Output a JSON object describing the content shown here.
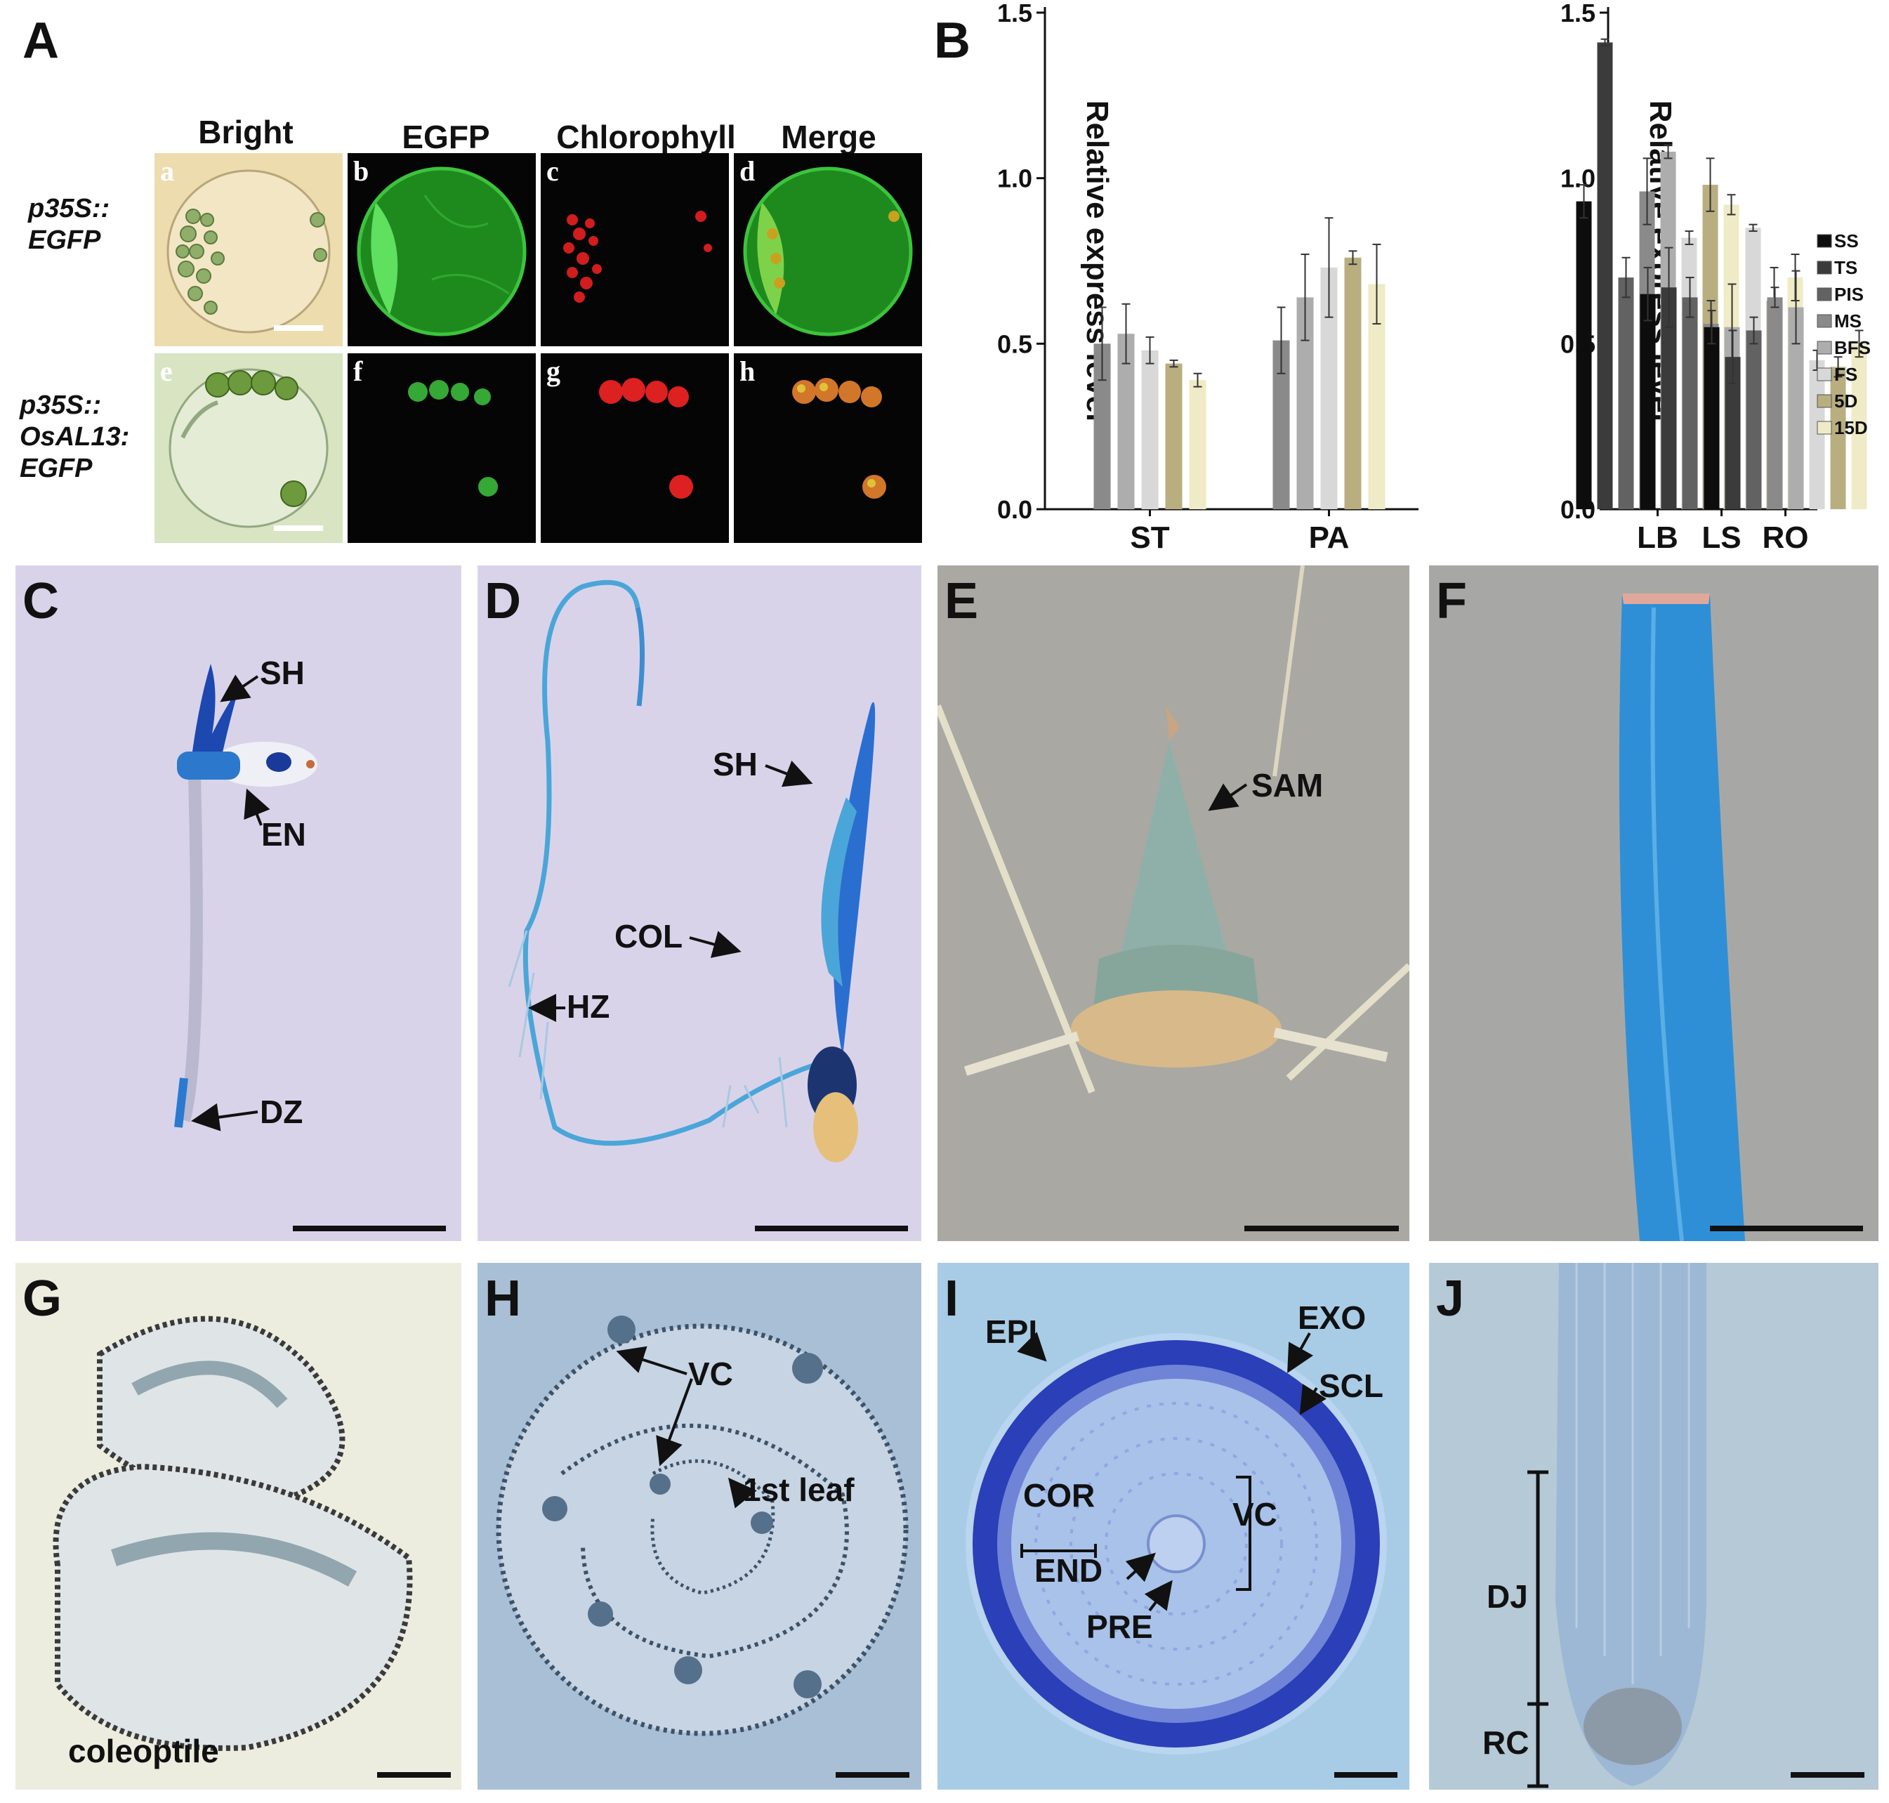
{
  "panelA": {
    "label": "A",
    "columns": [
      "Bright",
      "EGFP",
      "Chlorophyll",
      "Merge"
    ],
    "rows": [
      {
        "label_lines": [
          "p35S::",
          "EGFP"
        ],
        "cells": [
          "a",
          "b",
          "c",
          "d"
        ]
      },
      {
        "label_lines": [
          "p35S::",
          "OsAL13:",
          "EGFP"
        ],
        "cells": [
          "e",
          "f",
          "g",
          "h"
        ]
      }
    ]
  },
  "panelB": {
    "label": "B",
    "legend": [
      "SS",
      "TS",
      "PIS",
      "MS",
      "BFS",
      "FS",
      "5D",
      "15D"
    ]
  },
  "chart_data": [
    {
      "type": "bar",
      "ylabel": "Relative express level",
      "ylim": [
        0,
        1.5
      ],
      "yticks": [
        "0.0",
        "0.5",
        "1.0",
        "1.5"
      ],
      "groups": [
        {
          "name": "ST",
          "values": {
            "MS": 0.5,
            "BFS": 0.53,
            "FS": 0.48,
            "5D": 0.44,
            "15D": 0.39
          },
          "errors": {
            "MS": 0.11,
            "BFS": 0.09,
            "FS": 0.04,
            "5D": 0.01,
            "15D": 0.02
          }
        },
        {
          "name": "PA",
          "values": {
            "MS": 0.51,
            "BFS": 0.64,
            "FS": 0.73,
            "5D": 0.76,
            "15D": 0.68
          },
          "errors": {
            "MS": 0.1,
            "BFS": 0.13,
            "FS": 0.15,
            "5D": 0.02,
            "15D": 0.12
          }
        }
      ]
    },
    {
      "type": "bar",
      "ylabel": "Relative express level",
      "ylim": [
        0,
        1.5
      ],
      "yticks": [
        "0.0",
        "0.5",
        "1.0",
        "1.5"
      ],
      "groups": [
        {
          "name": "LB",
          "values": {
            "SS": 0.93,
            "TS": 1.41,
            "PIS": 0.7,
            "MS": 0.96,
            "BFS": 1.08,
            "FS": 0.82,
            "5D": 0.98,
            "15D": 0.92
          },
          "errors": {
            "SS": 0.05,
            "TS": 0.01,
            "PIS": 0.06,
            "MS": 0.1,
            "BFS": 0.02,
            "FS": 0.02,
            "5D": 0.08,
            "15D": 0.03
          }
        },
        {
          "name": "LS",
          "values": {
            "SS": 0.65,
            "TS": 0.67,
            "PIS": 0.64,
            "MS": 0.56,
            "BFS": 0.55,
            "FS": 0.85,
            "5D": 0.63,
            "15D": 0.7
          },
          "errors": {
            "SS": 0.08,
            "TS": 0.12,
            "PIS": 0.06,
            "MS": 0.07,
            "BFS": 0.13,
            "FS": 0.01,
            "5D": 0.1,
            "15D": 0.07
          }
        },
        {
          "name": "RO",
          "values": {
            "SS": 0.55,
            "TS": 0.46,
            "PIS": 0.54,
            "MS": 0.64,
            "BFS": 0.61,
            "FS": 0.45,
            "5D": 0.43,
            "15D": 0.5
          },
          "errors": {
            "SS": 0.05,
            "TS": 0.08,
            "PIS": 0.04,
            "MS": 0.03,
            "BFS": 0.11,
            "FS": 0.03,
            "5D": 0.03,
            "15D": 0.04
          }
        }
      ]
    }
  ],
  "seriesColors": {
    "SS": "#0d0d0d",
    "TS": "#3b3b3b",
    "PIS": "#626262",
    "MS": "#8a8a8a",
    "BFS": "#adadad",
    "FS": "#d8d8d8",
    "5D": "#b8ae80",
    "15D": "#eeebc6"
  },
  "panelC": {
    "label": "C",
    "ann": [
      "SH",
      "EN",
      "DZ"
    ]
  },
  "panelD": {
    "label": "D",
    "ann": [
      "SH",
      "COL",
      "HZ"
    ]
  },
  "panelE": {
    "label": "E",
    "ann": [
      "SAM"
    ]
  },
  "panelF": {
    "label": "F"
  },
  "panelG": {
    "label": "G",
    "ann": [
      "coleoptile"
    ]
  },
  "panelH": {
    "label": "H",
    "ann": [
      "VC",
      "1st leaf"
    ]
  },
  "panelI": {
    "label": "I",
    "ann": [
      "EPI",
      "EXO",
      "SCL",
      "COR",
      "VC",
      "END",
      "PRE"
    ]
  },
  "panelJ": {
    "label": "J",
    "ann": [
      "DJ",
      "RC"
    ]
  }
}
